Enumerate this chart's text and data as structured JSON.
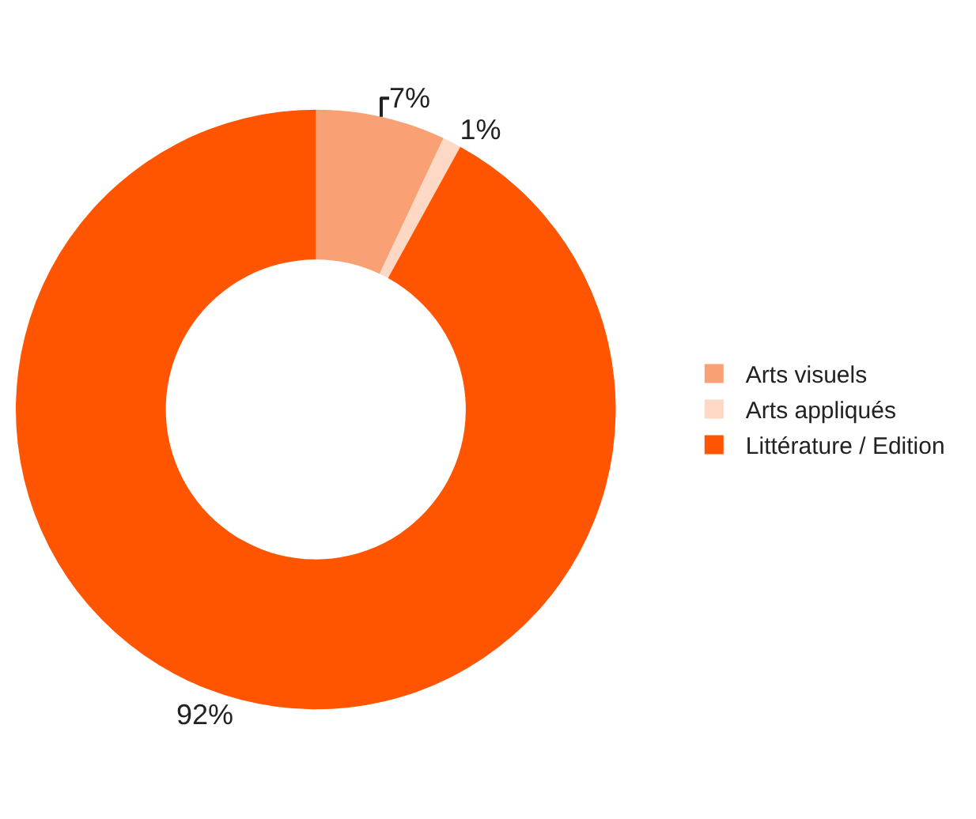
{
  "chart_data": {
    "type": "donut",
    "categories": [
      "Arts visuels",
      "Arts appliqués",
      "Littérature / Edition"
    ],
    "values": [
      7,
      1,
      92
    ],
    "colors": [
      "#f9a175",
      "#fdd8c4",
      "#ff5500"
    ],
    "value_labels": [
      "7%",
      "1%",
      "92%"
    ],
    "legend": "right"
  }
}
